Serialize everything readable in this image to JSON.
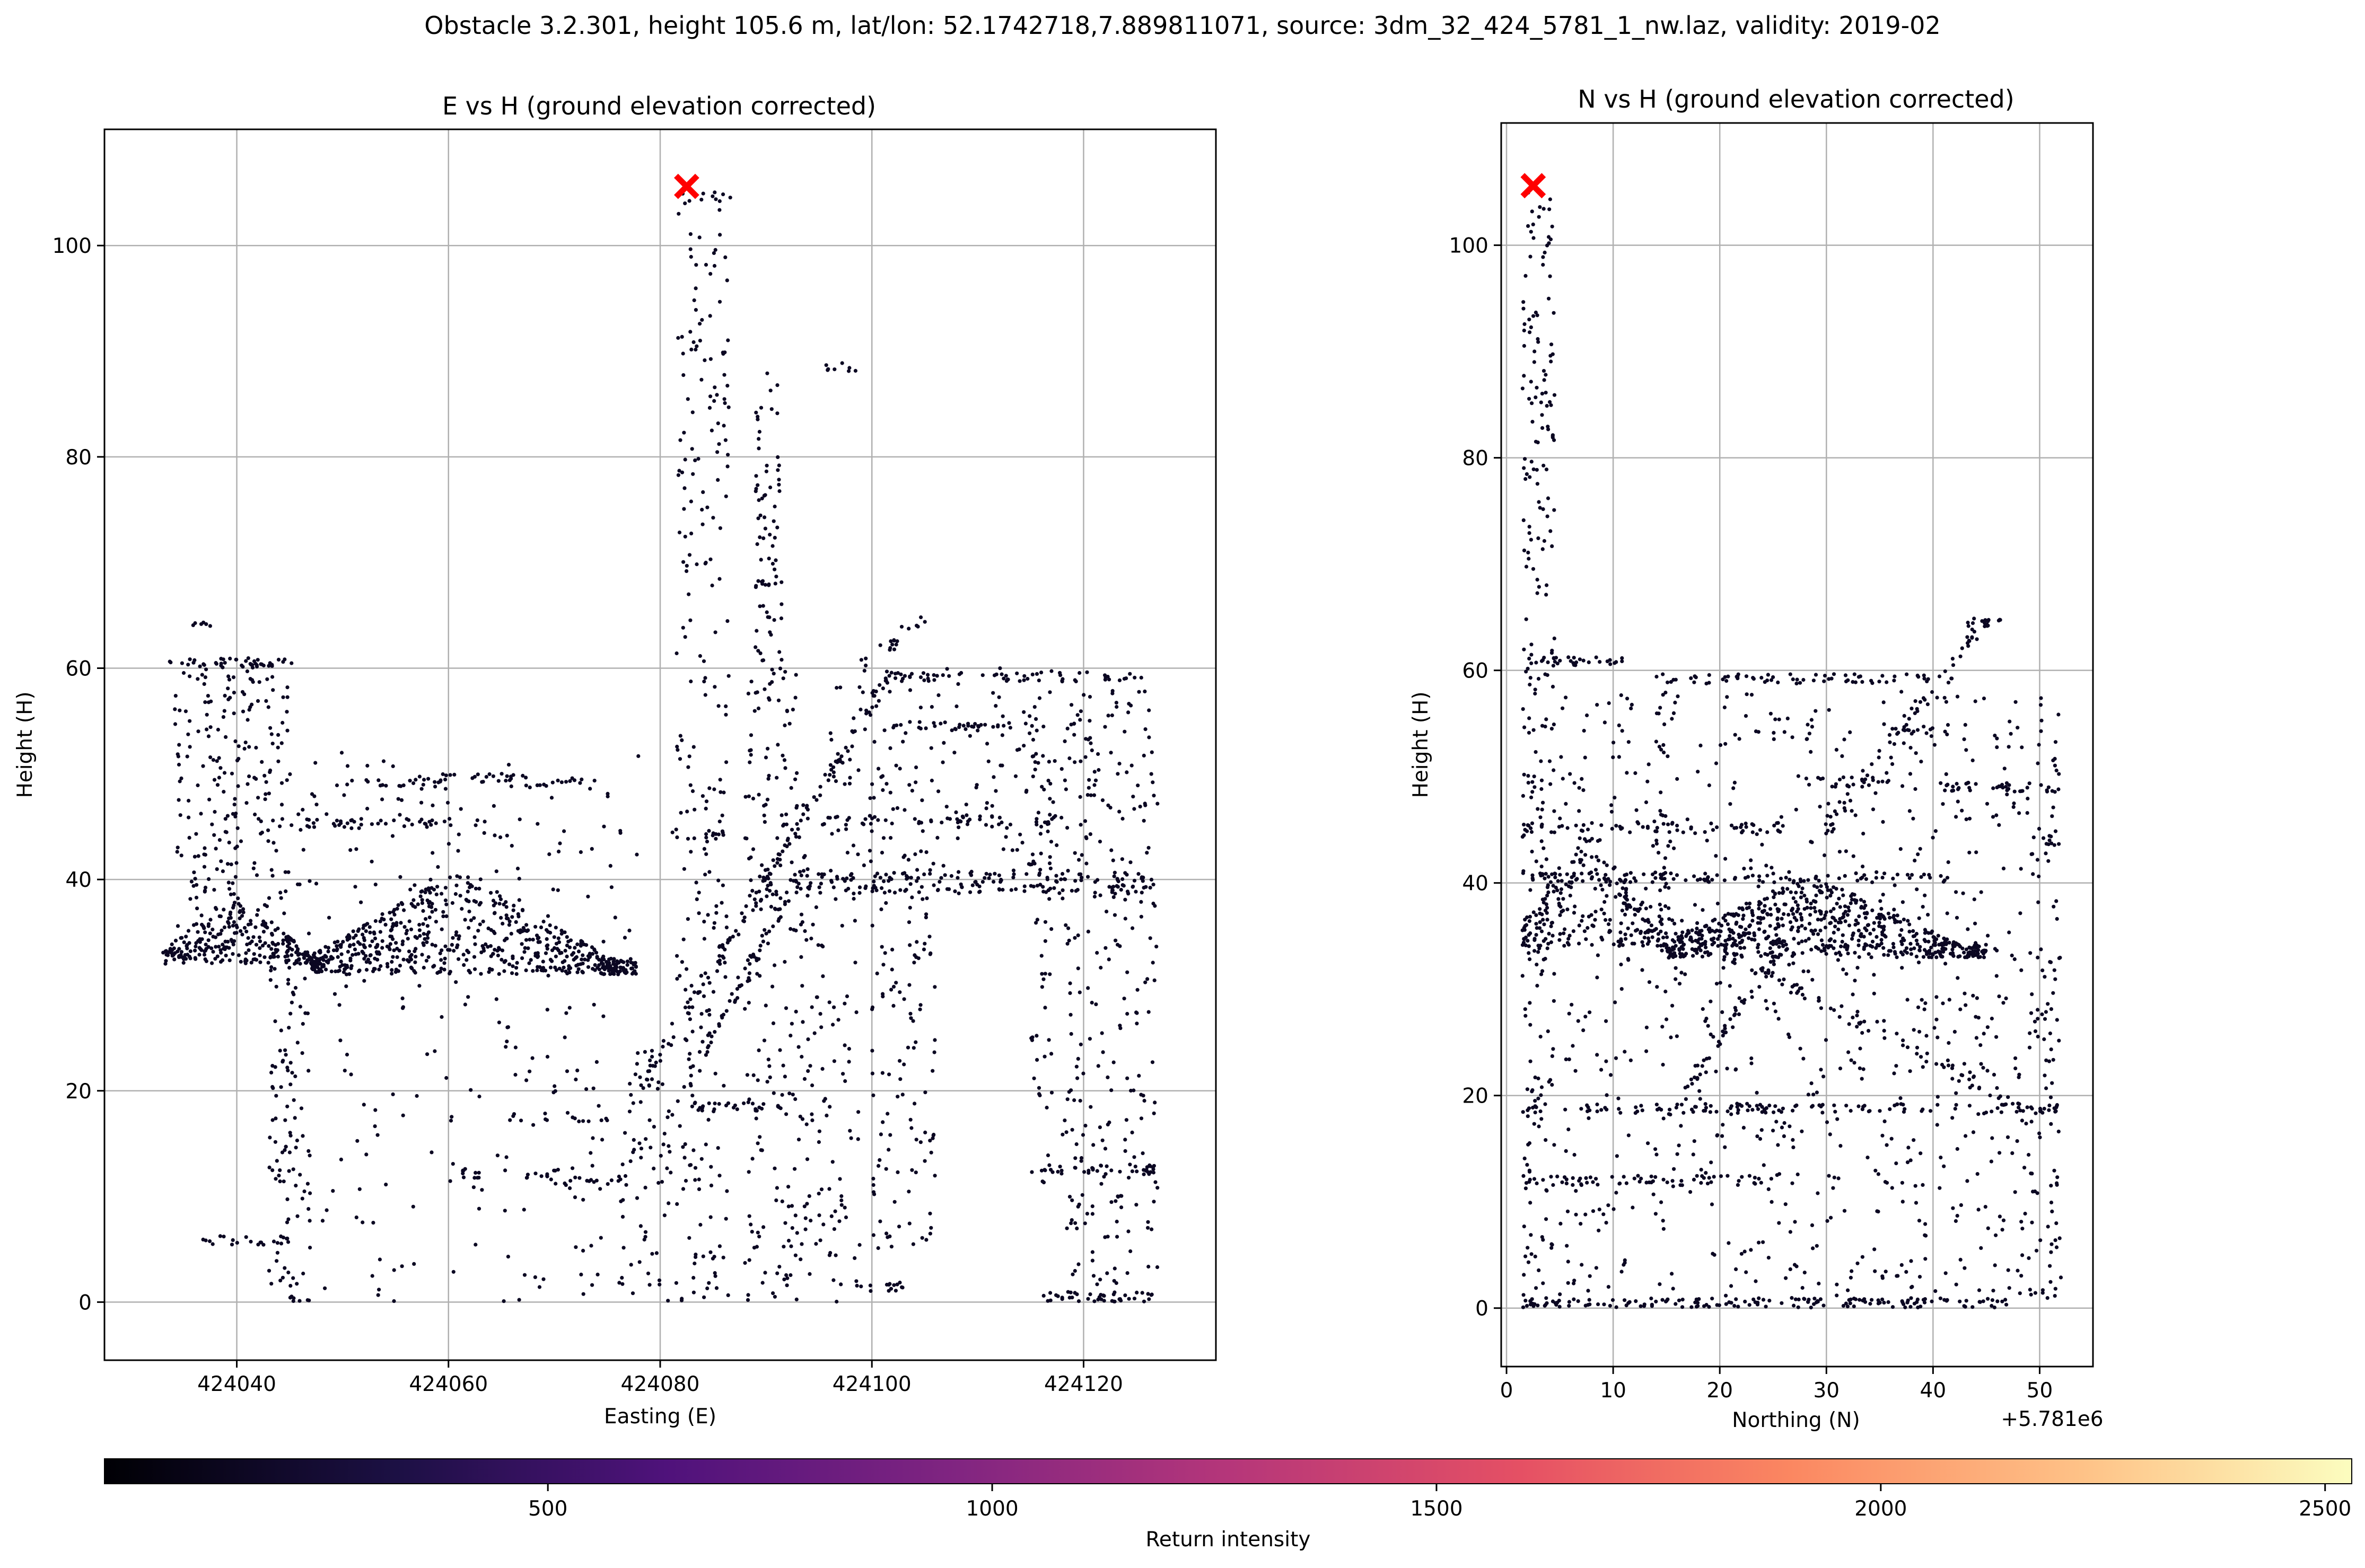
{
  "suptitle": "Obstacle 3.2.301, height 105.6 m, lat/lon: 52.1742718,7.889811071, source: 3dm_32_424_5781_1_nw.laz, validity: 2019-02",
  "colors": {
    "point": "#0b0722",
    "marker": "#ff0000",
    "grid": "#b0b0b0",
    "colormap": "magma"
  },
  "chart_data": [
    {
      "type": "scatter",
      "title": "E vs H (ground elevation corrected)",
      "xlabel": "Easting (E)",
      "ylabel": "Height (H)",
      "xlim": [
        424027.5,
        424132.5
      ],
      "ylim": [
        -5.5,
        111
      ],
      "xticks": [
        424040,
        424060,
        424080,
        424100,
        424120
      ],
      "xtick_labels": [
        "424040",
        "424060",
        "424080",
        "424100",
        "424120"
      ],
      "yticks": [
        0,
        20,
        40,
        60,
        80,
        100
      ],
      "ytick_labels": [
        "0",
        "20",
        "40",
        "60",
        "80",
        "100"
      ],
      "grid": true,
      "obstacle_marker": {
        "x": 424082.5,
        "y": 105.6
      },
      "structures": [
        {
          "kind": "hband",
          "x": [
            424033.5,
            424045.5
          ],
          "y": 60.5,
          "n": 45
        },
        {
          "kind": "hband",
          "x": [
            424035.5,
            424037.5
          ],
          "y": 64.0,
          "n": 6
        },
        {
          "kind": "hband",
          "x": [
            424045,
            424064
          ],
          "y": 45.3,
          "n": 45
        },
        {
          "kind": "hband",
          "x": [
            424049,
            424060
          ],
          "y": 49.0,
          "n": 20
        },
        {
          "kind": "hband",
          "x": [
            424057,
            424068
          ],
          "y": 49.6,
          "n": 25
        },
        {
          "kind": "hband",
          "x": [
            424067,
            424074
          ],
          "y": 49.2,
          "n": 15
        },
        {
          "kind": "hband",
          "x": [
            424081,
            424086
          ],
          "y": 44.3,
          "n": 15
        },
        {
          "kind": "hband",
          "x": [
            424082,
            424087
          ],
          "y": 104.6,
          "n": 10
        },
        {
          "kind": "hband",
          "x": [
            424095.5,
            424099
          ],
          "y": 88.5,
          "n": 8
        },
        {
          "kind": "hband",
          "x": [
            424089,
            424092
          ],
          "y": 68.0,
          "n": 8
        },
        {
          "kind": "hband",
          "x": [
            424090,
            424127
          ],
          "y": 40.2,
          "n": 85
        },
        {
          "kind": "hband",
          "x": [
            424090,
            424127
          ],
          "y": 39.1,
          "n": 85
        },
        {
          "kind": "hband",
          "x": [
            424101,
            424126
          ],
          "y": 59.2,
          "n": 60
        },
        {
          "kind": "hband",
          "x": [
            424095,
            424118
          ],
          "y": 45.6,
          "n": 50
        },
        {
          "kind": "hband",
          "x": [
            424102,
            424114
          ],
          "y": 54.5,
          "n": 30
        },
        {
          "kind": "hband",
          "x": [
            424083,
            424092
          ],
          "y": 18.5,
          "n": 30
        },
        {
          "kind": "hband",
          "x": [
            424116,
            424127
          ],
          "y": 12.5,
          "n": 35
        },
        {
          "kind": "hband",
          "x": [
            424116,
            424127
          ],
          "y": 0.5,
          "n": 40
        },
        {
          "kind": "hband",
          "x": [
            424061,
            424071
          ],
          "y": 12.2,
          "n": 20
        },
        {
          "kind": "hband",
          "x": [
            424070,
            424078
          ],
          "y": 11.5,
          "n": 15
        },
        {
          "kind": "hband",
          "x": [
            424036,
            424045
          ],
          "y": 5.8,
          "n": 20
        },
        {
          "kind": "hband",
          "x": [
            424065,
            424075
          ],
          "y": 17.5,
          "n": 15
        },
        {
          "kind": "hband",
          "x": [
            424096,
            424104
          ],
          "y": 1.5,
          "n": 15
        },
        {
          "kind": "tower",
          "x": [
            424081.5,
            424086.5
          ],
          "y": [
            0,
            104.5
          ],
          "n": 240
        },
        {
          "kind": "tower",
          "x": [
            424089,
            424091.5
          ],
          "y": [
            58,
            88
          ],
          "n": 70
        },
        {
          "kind": "tower",
          "x": [
            424088,
            424093
          ],
          "y": [
            0,
            60
          ],
          "n": 170
        },
        {
          "kind": "tower",
          "x": [
            424034,
            424040
          ],
          "y": [
            32,
            60
          ],
          "n": 130
        },
        {
          "kind": "tower",
          "x": [
            424040,
            424045
          ],
          "y": [
            30,
            60
          ],
          "n": 100
        },
        {
          "kind": "tower",
          "x": [
            424043,
            424047
          ],
          "y": [
            0,
            30
          ],
          "n": 100
        },
        {
          "kind": "tower",
          "x": [
            424118,
            424127
          ],
          "y": [
            0,
            58
          ],
          "n": 260
        },
        {
          "kind": "tower",
          "x": [
            424115,
            424117
          ],
          "y": [
            10,
            58
          ],
          "n": 60
        },
        {
          "kind": "tower",
          "x": [
            424093,
            424099
          ],
          "y": [
            0,
            42
          ],
          "n": 110
        },
        {
          "kind": "tower",
          "x": [
            424100,
            424106
          ],
          "y": [
            5,
            40
          ],
          "n": 110
        },
        {
          "kind": "tower",
          "x": [
            424096,
            424118
          ],
          "y": [
            40,
            60
          ],
          "n": 180
        },
        {
          "kind": "tower",
          "x": [
            424076,
            424081
          ],
          "y": [
            0,
            25
          ],
          "n": 70
        },
        {
          "kind": "tower",
          "x": [
            424065,
            424075
          ],
          "y": [
            0,
            30
          ],
          "n": 60
        },
        {
          "kind": "tower",
          "x": [
            424048,
            424065
          ],
          "y": [
            0,
            30
          ],
          "n": 60
        },
        {
          "kind": "ramp",
          "x": [
            424078,
            424102
          ],
          "y": [
            20,
            60
          ],
          "n": 130
        },
        {
          "kind": "ramp",
          "x": [
            424081,
            424094
          ],
          "y": [
            18,
            42
          ],
          "n": 70
        },
        {
          "kind": "ramp",
          "x": [
            424099,
            424105
          ],
          "y": [
            60,
            65
          ],
          "n": 20
        },
        {
          "kind": "roof",
          "x": [
            424047,
            424078
          ],
          "y": [
            31,
            41
          ],
          "n": 600
        },
        {
          "kind": "roof",
          "x": [
            424033,
            424048
          ],
          "y": [
            32,
            39
          ],
          "n": 250
        },
        {
          "kind": "scatter",
          "x": [
            424038,
            424078
          ],
          "y": [
            30,
            52
          ],
          "n": 140
        }
      ]
    },
    {
      "type": "scatter",
      "title": "N vs H (ground elevation corrected)",
      "xlabel": "Northing (N)",
      "ylabel": "Height (H)",
      "offset_label": "+5.781e6",
      "xlim": [
        -0.5,
        55
      ],
      "ylim": [
        -5.5,
        111.5
      ],
      "xticks": [
        0,
        10,
        20,
        30,
        40,
        50
      ],
      "xtick_labels": [
        "0",
        "10",
        "20",
        "30",
        "40",
        "50"
      ],
      "yticks": [
        0,
        20,
        40,
        60,
        80,
        100
      ],
      "ytick_labels": [
        "0",
        "20",
        "40",
        "60",
        "80",
        "100"
      ],
      "grid": true,
      "obstacle_marker": {
        "x": 2.5,
        "y": 105.6
      },
      "structures": [
        {
          "kind": "tower",
          "x": [
            1.5,
            4.5
          ],
          "y": [
            0,
            105
          ],
          "n": 260
        },
        {
          "kind": "hband",
          "x": [
            1.5,
            11
          ],
          "y": 60.8,
          "n": 30
        },
        {
          "kind": "hband",
          "x": [
            14,
            42
          ],
          "y": 59.2,
          "n": 70
        },
        {
          "kind": "hband",
          "x": [
            1.5,
            26
          ],
          "y": 45.2,
          "n": 60
        },
        {
          "kind": "hband",
          "x": [
            1.5,
            42
          ],
          "y": 40.5,
          "n": 100
        },
        {
          "kind": "hband",
          "x": [
            1.5,
            52
          ],
          "y": 18.8,
          "n": 120
        },
        {
          "kind": "hband",
          "x": [
            1.5,
            24
          ],
          "y": 12.0,
          "n": 60
        },
        {
          "kind": "hband",
          "x": [
            1.5,
            47
          ],
          "y": 0.5,
          "n": 140
        },
        {
          "kind": "hband",
          "x": [
            41,
            52
          ],
          "y": 49.0,
          "n": 30
        },
        {
          "kind": "hband",
          "x": [
            28,
            36
          ],
          "y": 49.5,
          "n": 20
        },
        {
          "kind": "hband",
          "x": [
            42,
            47
          ],
          "y": 64.5,
          "n": 15
        },
        {
          "kind": "hband",
          "x": [
            35,
            42
          ],
          "y": 54.5,
          "n": 15
        },
        {
          "kind": "hband",
          "x": [
            49,
            52
          ],
          "y": 44.0,
          "n": 8
        },
        {
          "kind": "ramp",
          "x": [
            30,
            45
          ],
          "y": [
            45,
            65
          ],
          "n": 60
        },
        {
          "kind": "ramp",
          "x": [
            8,
            50
          ],
          "y": [
            40,
            18
          ],
          "n": 110
        },
        {
          "kind": "ramp",
          "x": [
            15,
            30
          ],
          "y": [
            18,
            40
          ],
          "n": 60
        },
        {
          "kind": "roof",
          "x": [
            15,
            45
          ],
          "y": [
            33,
            41
          ],
          "n": 600
        },
        {
          "kind": "roof",
          "x": [
            1.5,
            15
          ],
          "y": [
            34,
            46
          ],
          "n": 200
        },
        {
          "kind": "tower",
          "x": [
            5,
            52
          ],
          "y": [
            0,
            58
          ],
          "n": 800
        },
        {
          "kind": "tower",
          "x": [
            14,
            16
          ],
          "y": [
            30,
            58
          ],
          "n": 40
        },
        {
          "kind": "tower",
          "x": [
            49,
            52
          ],
          "y": [
            0,
            52
          ],
          "n": 60
        }
      ]
    }
  ],
  "colorbar": {
    "label": "Return intensity",
    "range": [
      1,
      2530
    ],
    "ticks": [
      500,
      1000,
      1500,
      2000,
      2500
    ],
    "tick_labels": [
      "500",
      "1000",
      "1500",
      "2000",
      "2500"
    ]
  }
}
